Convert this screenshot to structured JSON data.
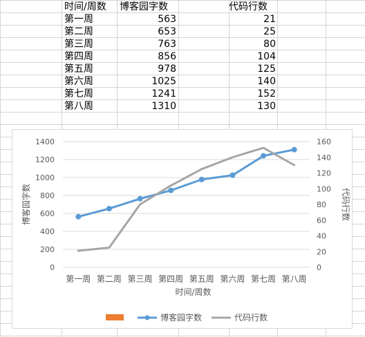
{
  "table": {
    "headers": [
      "时间/周数",
      "博客园字数",
      "代码行数"
    ],
    "rows": [
      [
        "第一周",
        "563",
        "21"
      ],
      [
        "第二周",
        "653",
        "25"
      ],
      [
        "第三周",
        "763",
        "80"
      ],
      [
        "第四周",
        "856",
        "104"
      ],
      [
        "第五周",
        "978",
        "125"
      ],
      [
        "第六周",
        "1025",
        "140"
      ],
      [
        "第七周",
        "1241",
        "152"
      ],
      [
        "第八周",
        "1310",
        "130"
      ]
    ]
  },
  "chart_data": {
    "type": "line",
    "categories": [
      "第一周",
      "第二周",
      "第三周",
      "第四周",
      "第五周",
      "第六周",
      "第七周",
      "第八周"
    ],
    "series": [
      {
        "name": "博客园字数",
        "axis": "left",
        "color": "#5b9bd5",
        "markers": true,
        "values": [
          563,
          653,
          763,
          856,
          978,
          1025,
          1241,
          1310
        ]
      },
      {
        "name": "代码行数",
        "axis": "right",
        "color": "#a5a5a5",
        "markers": false,
        "values": [
          21,
          25,
          80,
          104,
          125,
          140,
          152,
          130
        ]
      }
    ],
    "legend": [
      {
        "name": "",
        "color": "#ed7d31",
        "kind": "bar"
      },
      {
        "name": "博客园字数",
        "color": "#5b9bd5",
        "kind": "line-marker"
      },
      {
        "name": "代码行数",
        "color": "#a5a5a5",
        "kind": "line"
      }
    ],
    "xlabel": "时间/周数",
    "ylabel": "博客园字数",
    "y2label": "代码行数",
    "ylim": [
      0,
      1400
    ],
    "y2lim": [
      0,
      160
    ],
    "yticks": [
      "0",
      "200",
      "400",
      "600",
      "800",
      "1000",
      "1200",
      "1400"
    ],
    "y2ticks": [
      "0",
      "20",
      "40",
      "60",
      "80",
      "100",
      "120",
      "140",
      "160"
    ],
    "grid": true,
    "legend_position": "bottom"
  }
}
